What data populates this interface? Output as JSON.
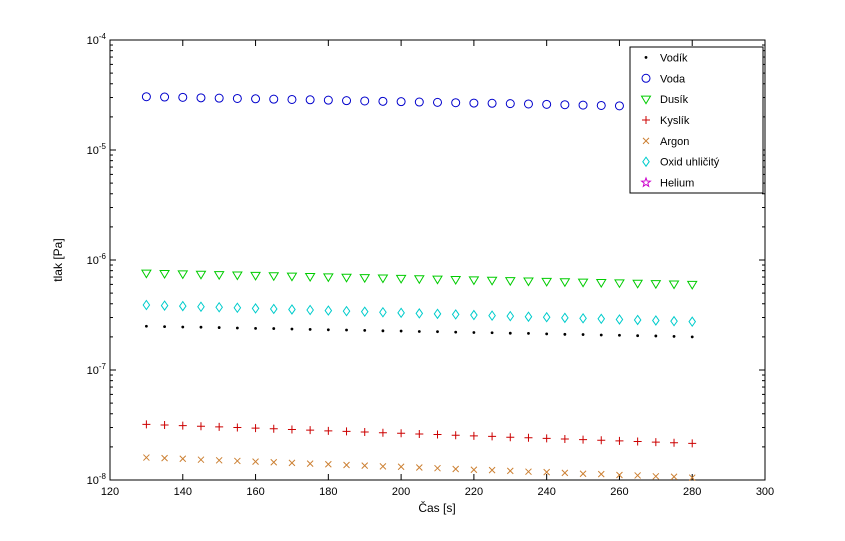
{
  "figure": {
    "background": "#ffffff"
  },
  "chart_data": {
    "type": "scatter",
    "title": "",
    "xlabel": "Čas [s]",
    "ylabel": "tlak [Pa]",
    "xlim": [
      120,
      300
    ],
    "xticks": [
      120,
      140,
      160,
      180,
      200,
      220,
      240,
      260,
      280,
      300
    ],
    "y_scale": "log",
    "ylim_exponents": [
      -8,
      -4
    ],
    "ytick_exponents": [
      -8,
      -7,
      -6,
      -5,
      -4
    ],
    "grid": false,
    "legend": {
      "position": "top-right",
      "border": true
    },
    "x": [
      130,
      135,
      140,
      145,
      150,
      155,
      160,
      165,
      170,
      175,
      180,
      185,
      190,
      195,
      200,
      205,
      210,
      215,
      220,
      225,
      230,
      235,
      240,
      245,
      250,
      255,
      260,
      265,
      270,
      275,
      280
    ],
    "series": [
      {
        "name": "Vodík",
        "marker": "point",
        "color": "#000000",
        "y": [
          2.5e-07,
          2.48e-07,
          2.46e-07,
          2.45e-07,
          2.43e-07,
          2.41e-07,
          2.39e-07,
          2.38e-07,
          2.36e-07,
          2.34e-07,
          2.32e-07,
          2.31e-07,
          2.29e-07,
          2.27e-07,
          2.26e-07,
          2.24e-07,
          2.23e-07,
          2.21e-07,
          2.19e-07,
          2.18e-07,
          2.16e-07,
          2.15e-07,
          2.13e-07,
          2.11e-07,
          2.1e-07,
          2.08e-07,
          2.07e-07,
          2.05e-07,
          2.04e-07,
          2.02e-07,
          2e-07
        ]
      },
      {
        "name": "Voda",
        "marker": "circle",
        "color": "#0000CC",
        "y": [
          3.05e-05,
          3.03e-05,
          3.01e-05,
          2.98e-05,
          2.96e-05,
          2.94e-05,
          2.92e-05,
          2.9e-05,
          2.88e-05,
          2.86e-05,
          2.84e-05,
          2.81e-05,
          2.79e-05,
          2.77e-05,
          2.75e-05,
          2.73e-05,
          2.71e-05,
          2.69e-05,
          2.67e-05,
          2.66e-05,
          2.64e-05,
          2.62e-05,
          2.6e-05,
          2.58e-05,
          2.56e-05,
          2.54e-05,
          2.52e-05,
          2.51e-05,
          2.49e-05,
          2.47e-05,
          2.45e-05
        ]
      },
      {
        "name": "Dusík",
        "marker": "triangle-down",
        "color": "#00CC00",
        "y": [
          7.6e-07,
          7.54e-07,
          7.48e-07,
          7.42e-07,
          7.36e-07,
          7.31e-07,
          7.25e-07,
          7.19e-07,
          7.14e-07,
          7.08e-07,
          7.02e-07,
          6.97e-07,
          6.91e-07,
          6.86e-07,
          6.81e-07,
          6.75e-07,
          6.7e-07,
          6.65e-07,
          6.6e-07,
          6.54e-07,
          6.49e-07,
          6.44e-07,
          6.39e-07,
          6.34e-07,
          6.29e-07,
          6.24e-07,
          6.2e-07,
          6.15e-07,
          6.1e-07,
          6.05e-07,
          6e-07
        ]
      },
      {
        "name": "Kyslík",
        "marker": "plus",
        "color": "#CC0000",
        "y": [
          3.2e-08,
          3.16e-08,
          3.12e-08,
          3.08e-08,
          3.04e-08,
          3e-08,
          2.96e-08,
          2.92e-08,
          2.88e-08,
          2.84e-08,
          2.8e-08,
          2.77e-08,
          2.73e-08,
          2.69e-08,
          2.66e-08,
          2.62e-08,
          2.59e-08,
          2.55e-08,
          2.52e-08,
          2.49e-08,
          2.45e-08,
          2.42e-08,
          2.39e-08,
          2.36e-08,
          2.33e-08,
          2.3e-08,
          2.27e-08,
          2.24e-08,
          2.21e-08,
          2.18e-08,
          2.15e-08
        ]
      },
      {
        "name": "Argon",
        "marker": "x",
        "color": "#CC8033",
        "y": [
          1.6e-08,
          1.58e-08,
          1.56e-08,
          1.53e-08,
          1.51e-08,
          1.49e-08,
          1.47e-08,
          1.45e-08,
          1.43e-08,
          1.41e-08,
          1.39e-08,
          1.37e-08,
          1.35e-08,
          1.33e-08,
          1.32e-08,
          1.3e-08,
          1.28e-08,
          1.26e-08,
          1.24e-08,
          1.23e-08,
          1.21e-08,
          1.19e-08,
          1.18e-08,
          1.16e-08,
          1.14e-08,
          1.13e-08,
          1.11e-08,
          1.1e-08,
          1.08e-08,
          1.07e-08,
          1.05e-08
        ]
      },
      {
        "name": "Oxid uhličitý",
        "marker": "diamond",
        "color": "#00CCCC",
        "y": [
          3.9e-07,
          3.85e-07,
          3.81e-07,
          3.76e-07,
          3.72e-07,
          3.68e-07,
          3.63e-07,
          3.59e-07,
          3.55e-07,
          3.51e-07,
          3.47e-07,
          3.43e-07,
          3.39e-07,
          3.35e-07,
          3.31e-07,
          3.27e-07,
          3.24e-07,
          3.2e-07,
          3.16e-07,
          3.12e-07,
          3.09e-07,
          3.05e-07,
          3.02e-07,
          2.98e-07,
          2.95e-07,
          2.92e-07,
          2.88e-07,
          2.85e-07,
          2.82e-07,
          2.78e-07,
          2.75e-07
        ]
      },
      {
        "name": "Helium",
        "marker": "pentagram",
        "color": "#CC00CC",
        "y": []
      }
    ]
  }
}
